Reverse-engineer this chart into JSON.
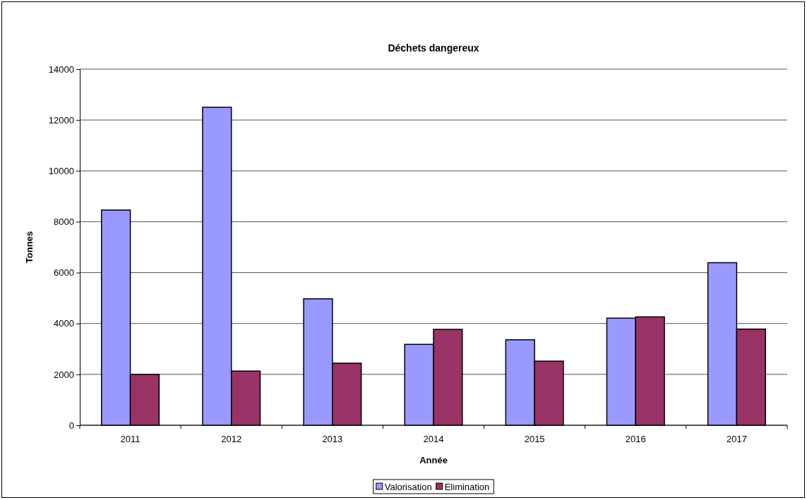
{
  "chart_data": {
    "type": "bar",
    "title": "Déchets dangereux",
    "xlabel": "Année",
    "ylabel": "Tonnes",
    "categories": [
      "2011",
      "2012",
      "2013",
      "2014",
      "2015",
      "2016",
      "2017"
    ],
    "series": [
      {
        "name": "Valorisation",
        "color": "#9999ff",
        "values": [
          8460,
          12500,
          4970,
          3180,
          3360,
          4210,
          6390
        ]
      },
      {
        "name": "Elimination",
        "color": "#993366",
        "values": [
          2000,
          2130,
          2440,
          3770,
          2520,
          4260,
          3780
        ]
      }
    ],
    "ylim": [
      0,
      14000
    ],
    "yticks": [
      0,
      2000,
      4000,
      6000,
      8000,
      10000,
      12000,
      14000
    ],
    "grid": "y",
    "legend": "bottom"
  }
}
